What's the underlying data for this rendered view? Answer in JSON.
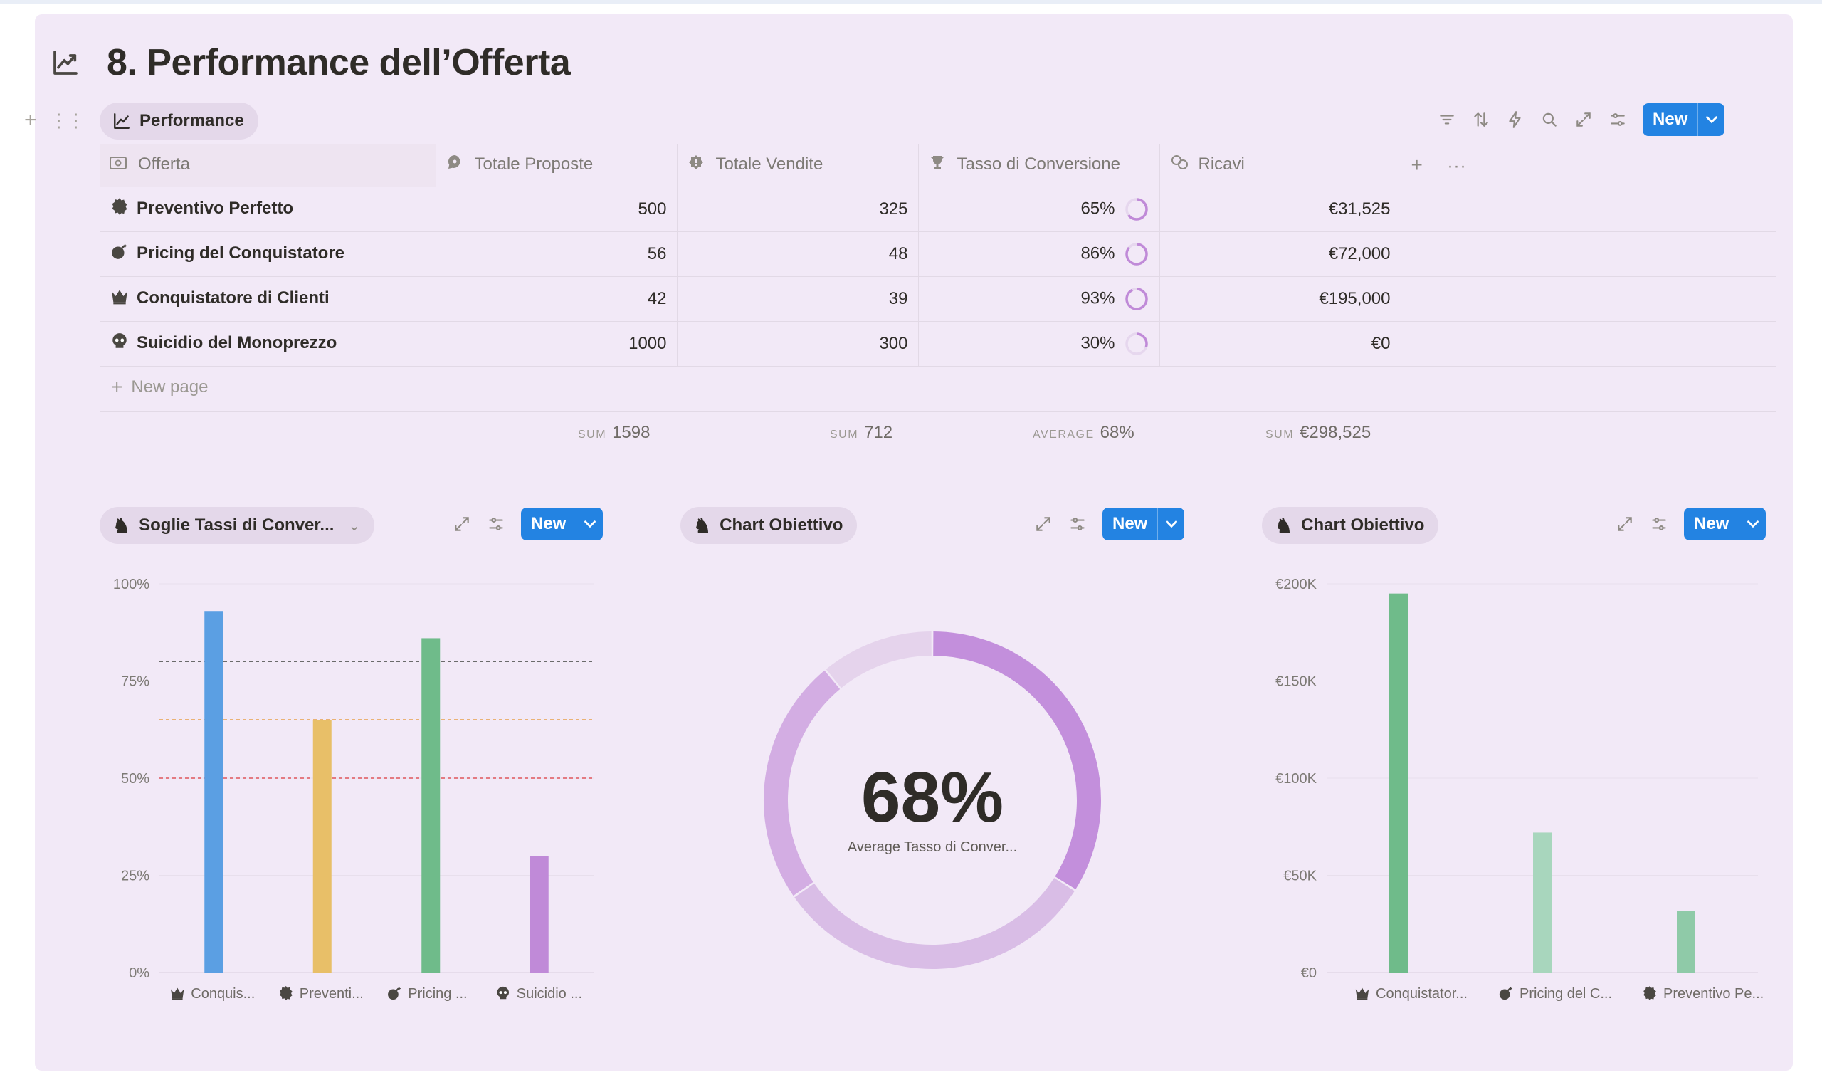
{
  "page": {
    "title": "8. Performance dell’Offerta",
    "title_icon": "trending-up-icon"
  },
  "table_view": {
    "tab_label": "Performance",
    "new_label": "New",
    "columns": [
      "Offerta",
      "Totale Proposte",
      "Totale Vendite",
      "Tasso di Conversione",
      "Ricavi"
    ],
    "rows": [
      {
        "icon": "gear-icon",
        "offerta": "Preventivo Perfetto",
        "proposte": "500",
        "vendite": "325",
        "tasso": "65%",
        "tasso_value": 0.65,
        "ricavi": "€31,525"
      },
      {
        "icon": "bomb-icon",
        "offerta": "Pricing del Conquistatore",
        "proposte": "56",
        "vendite": "48",
        "tasso": "86%",
        "tasso_value": 0.86,
        "ricavi": "€72,000"
      },
      {
        "icon": "crown-icon",
        "offerta": "Conquistatore di Clienti",
        "proposte": "42",
        "vendite": "39",
        "tasso": "93%",
        "tasso_value": 0.93,
        "ricavi": "€195,000"
      },
      {
        "icon": "skull-icon",
        "offerta": "Suicidio del Monoprezzo",
        "proposte": "1000",
        "vendite": "300",
        "tasso": "30%",
        "tasso_value": 0.3,
        "ricavi": "€0"
      }
    ],
    "new_page_label": "New page",
    "calculations": {
      "proposte": {
        "label": "SUM",
        "value": "1598"
      },
      "vendite": {
        "label": "SUM",
        "value": "712"
      },
      "tasso": {
        "label": "AVERAGE",
        "value": "68%"
      },
      "ricavi": {
        "label": "SUM",
        "value": "€298,525"
      }
    },
    "ring_color": "#c08ad8"
  },
  "chart_views": [
    {
      "label": "Soglie Tassi di Conver...",
      "new_label": "New"
    },
    {
      "label": "Chart Obiettivo",
      "new_label": "New"
    },
    {
      "label": "Chart Obiettivo",
      "new_label": "New"
    }
  ],
  "chart_data": [
    {
      "type": "bar",
      "categories": [
        "Conquis...",
        "Preventi...",
        "Pricing ...",
        "Suicidio ..."
      ],
      "category_icons": [
        "crown-icon",
        "gear-icon",
        "bomb-icon",
        "skull-icon"
      ],
      "values": [
        93,
        65,
        86,
        30
      ],
      "colors": [
        "#5b9fe3",
        "#e8bf68",
        "#6fbb8a",
        "#c08ad8"
      ],
      "ylim": [
        0,
        100
      ],
      "yticks": [
        "0%",
        "25%",
        "50%",
        "75%",
        "100%"
      ],
      "thresholds": [
        {
          "value": 80,
          "color": "#6b6b6b"
        },
        {
          "value": 65,
          "color": "#e8a04a"
        },
        {
          "value": 50,
          "color": "#e0565b"
        }
      ]
    },
    {
      "type": "pie",
      "center_value": "68%",
      "center_label": "Average Tasso di Conver...",
      "values": [
        93,
        86,
        65,
        30
      ],
      "colors": [
        "#c38fdc",
        "#d9bde6",
        "#d3ade3",
        "#e5d3ec"
      ]
    },
    {
      "type": "bar",
      "categories": [
        "Conquistator...",
        "Pricing del C...",
        "Preventivo Pe..."
      ],
      "category_icons": [
        "crown-icon",
        "bomb-icon",
        "gear-icon"
      ],
      "values": [
        195000,
        72000,
        31525
      ],
      "colors": [
        "#6fbb8a",
        "#a8d6bd",
        "#8fcaa8"
      ],
      "ylim": [
        0,
        200000
      ],
      "yticks": [
        "€0",
        "€50K",
        "€100K",
        "€150K",
        "€200K"
      ]
    }
  ]
}
